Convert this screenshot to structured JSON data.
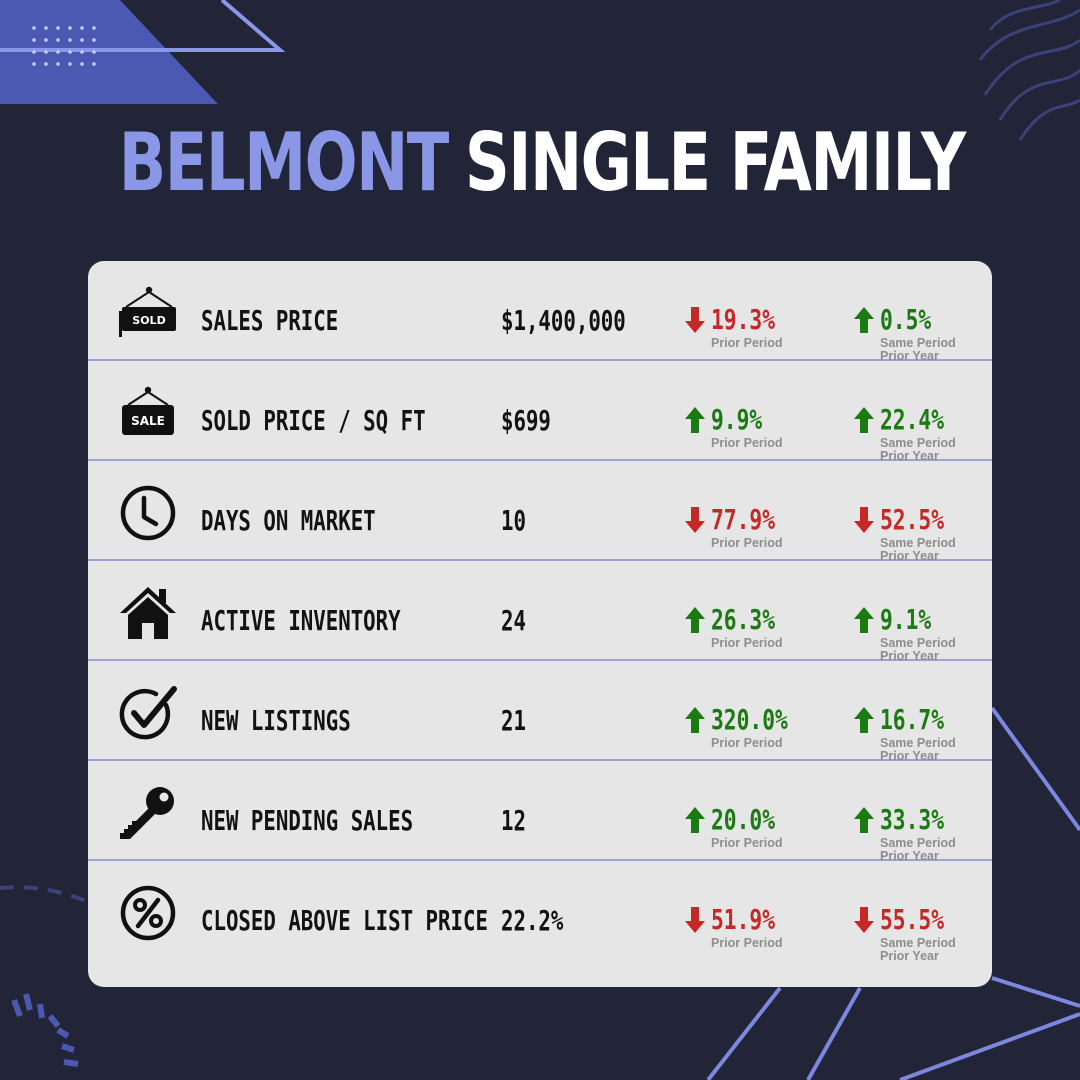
{
  "title": {
    "accent": "BELMONT",
    "main": "SINGLE FAMILY"
  },
  "colors": {
    "background": "#222437",
    "accent": "#8a96e6",
    "card": "#e6e6e6",
    "up": "#1c7a12",
    "down": "#c62828",
    "caption": "#8d8d8d"
  },
  "rows": [
    {
      "icon": "sold-sign-icon",
      "icon_text": "SOLD",
      "label": "SALES PRICE",
      "value": "$1,400,000",
      "prior_period": {
        "direction": "down",
        "pct": "19.3%",
        "caption": "Prior Period"
      },
      "prior_year": {
        "direction": "up",
        "pct": "0.5%",
        "caption1": "Same Period",
        "caption2": "Prior Year"
      }
    },
    {
      "icon": "sale-sign-icon",
      "icon_text": "SALE",
      "label": "SOLD PRICE / SQ FT",
      "value": "$699",
      "prior_period": {
        "direction": "up",
        "pct": "9.9%",
        "caption": "Prior Period"
      },
      "prior_year": {
        "direction": "up",
        "pct": "22.4%",
        "caption1": "Same Period",
        "caption2": "Prior Year"
      }
    },
    {
      "icon": "clock-icon",
      "label": "DAYS ON MARKET",
      "value": "10",
      "prior_period": {
        "direction": "down",
        "pct": "77.9%",
        "caption": "Prior Period"
      },
      "prior_year": {
        "direction": "down",
        "pct": "52.5%",
        "caption1": "Same Period",
        "caption2": "Prior Year"
      }
    },
    {
      "icon": "house-icon",
      "label": "ACTIVE INVENTORY",
      "value": "24",
      "prior_period": {
        "direction": "up",
        "pct": "26.3%",
        "caption": "Prior Period"
      },
      "prior_year": {
        "direction": "up",
        "pct": "9.1%",
        "caption1": "Same Period",
        "caption2": "Prior Year"
      }
    },
    {
      "icon": "checkmark-circle-icon",
      "label": "NEW LISTINGS",
      "value": "21",
      "prior_period": {
        "direction": "up",
        "pct": "320.0%",
        "caption": "Prior Period"
      },
      "prior_year": {
        "direction": "up",
        "pct": "16.7%",
        "caption1": "Same Period",
        "caption2": "Prior Year"
      }
    },
    {
      "icon": "key-icon",
      "label": "NEW PENDING SALES",
      "value": "12",
      "prior_period": {
        "direction": "up",
        "pct": "20.0%",
        "caption": "Prior Period"
      },
      "prior_year": {
        "direction": "up",
        "pct": "33.3%",
        "caption1": "Same Period",
        "caption2": "Prior Year"
      }
    },
    {
      "icon": "percent-circle-icon",
      "label": "CLOSED ABOVE LIST PRICE",
      "value": "22.2%",
      "prior_period": {
        "direction": "down",
        "pct": "51.9%",
        "caption": "Prior Period"
      },
      "prior_year": {
        "direction": "down",
        "pct": "55.5%",
        "caption1": "Same Period",
        "caption2": "Prior Year"
      }
    }
  ]
}
